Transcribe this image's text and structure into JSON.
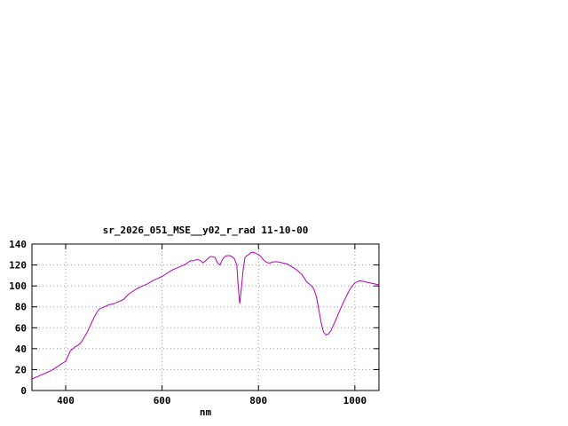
{
  "window": {
    "background": "#ffffff"
  },
  "chart_data": {
    "type": "line",
    "title": "sr_2026_051_MSE__y02_r_rad 11-10-00",
    "xlabel": "nm",
    "ylabel": "",
    "xlim": [
      330,
      1050
    ],
    "ylim": [
      0,
      140
    ],
    "x_ticks": [
      400,
      600,
      800,
      1000
    ],
    "y_ticks": [
      0,
      20,
      40,
      60,
      80,
      100,
      120,
      140
    ],
    "grid": true,
    "legend_position": "none",
    "line_color": "#b000b0",
    "grid_color": "#999999",
    "axis_color": "#000000",
    "series": [
      {
        "x": [
          330,
          340,
          350,
          360,
          370,
          380,
          390,
          400,
          405,
          410,
          415,
          420,
          425,
          430,
          435,
          440,
          445,
          450,
          455,
          460,
          465,
          470,
          480,
          490,
          500,
          510,
          520,
          530,
          540,
          550,
          560,
          570,
          580,
          590,
          600,
          610,
          620,
          630,
          640,
          650,
          655,
          660,
          665,
          670,
          675,
          680,
          685,
          690,
          695,
          700,
          705,
          710,
          715,
          720,
          725,
          730,
          735,
          740,
          745,
          750,
          755,
          758,
          761,
          764,
          768,
          772,
          776,
          780,
          785,
          790,
          795,
          800,
          805,
          810,
          815,
          820,
          825,
          830,
          840,
          850,
          860,
          870,
          880,
          890,
          900,
          910,
          915,
          920,
          925,
          930,
          935,
          940,
          945,
          950,
          955,
          960,
          970,
          980,
          990,
          1000,
          1010,
          1020,
          1030,
          1040,
          1050
        ],
        "y": [
          11,
          13,
          15,
          17,
          19,
          22,
          25,
          28,
          33,
          38,
          40,
          42,
          43,
          45,
          48,
          52,
          56,
          61,
          66,
          71,
          75,
          78,
          80,
          82,
          83,
          85,
          87,
          92,
          95,
          98,
          100,
          102,
          105,
          107,
          109,
          112,
          115,
          117,
          119,
          121,
          123,
          124,
          124,
          125,
          125,
          124,
          122,
          124,
          126,
          128,
          128,
          127,
          122,
          120,
          125,
          128,
          129,
          129,
          128,
          126,
          120,
          100,
          83,
          95,
          115,
          127,
          129,
          130,
          132,
          132,
          131,
          130,
          128,
          125,
          123,
          122,
          122,
          123,
          123,
          122,
          121,
          118,
          115,
          111,
          104,
          100,
          97,
          90,
          78,
          65,
          56,
          53,
          54,
          57,
          62,
          67,
          78,
          88,
          97,
          103,
          105,
          104,
          103,
          102,
          101
        ]
      }
    ]
  }
}
